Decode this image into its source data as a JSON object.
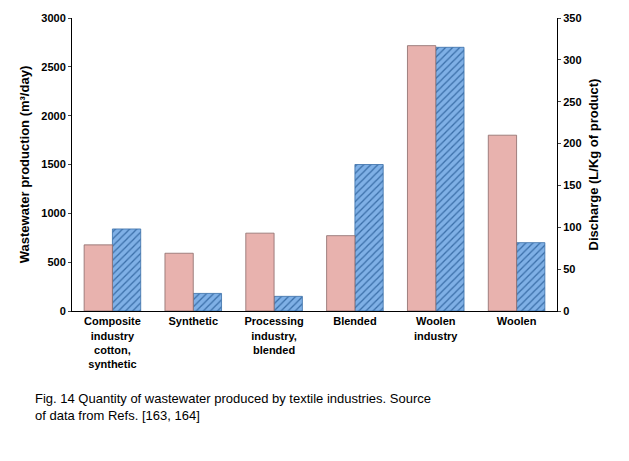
{
  "chart_data": {
    "type": "bar",
    "title": "Fig. 14 Quantity of wastewater produced by textile industries. Source of data from Refs. [163, 164]",
    "categories": [
      "Composite industry cotton, synthetic",
      "Synthetic",
      "Processing industry, blended",
      "Blended",
      "Woolen industry",
      "Woolen"
    ],
    "ylabel": "Wastewater production (m³/day)",
    "y2label": "Discharge (L/Kg of product)",
    "series": [
      {
        "name": "Discharge (L/Kg of product)",
        "color": "#e8b2ae",
        "marker": "solid",
        "axis": "y2",
        "values": [
          79,
          69,
          93,
          90,
          317,
          210
        ]
      },
      {
        "name": "Wastewater production (m³/day)",
        "color": "#7fb0e6",
        "marker": "hatched",
        "values": [
          840,
          180,
          150,
          1500,
          2700,
          700
        ]
      }
    ],
    "ylim": [
      0,
      3000
    ],
    "yticks": [
      0,
      500,
      1000,
      1500,
      2000,
      2500,
      3000
    ],
    "y2lim": [
      0,
      350
    ],
    "y2ticks": [
      0,
      50,
      100,
      150,
      200,
      250,
      300,
      350
    ],
    "grid": false
  }
}
